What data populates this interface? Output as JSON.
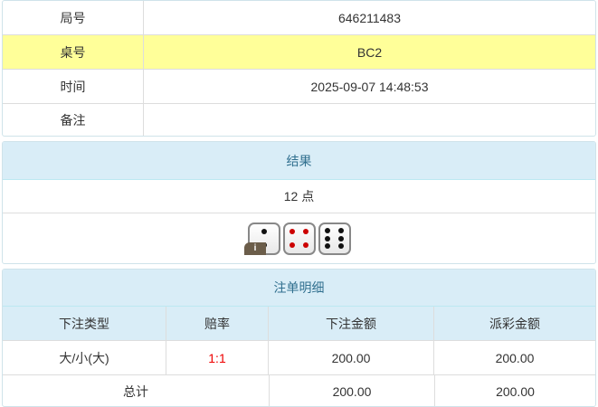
{
  "info": [
    {
      "label": "局号",
      "value": "646211483"
    },
    {
      "label": "桌号",
      "value": "BC2"
    },
    {
      "label": "时间",
      "value": "2025-09-07 14:48:53"
    },
    {
      "label": "备注",
      "value": ""
    }
  ],
  "result": {
    "title": "结果",
    "points": "12 点",
    "dice": [
      2,
      4,
      6
    ],
    "info_icon": "i"
  },
  "bets": {
    "title": "注单明细",
    "columns": [
      "下注类型",
      "赔率",
      "下注金额",
      "派彩金额"
    ],
    "rows": [
      {
        "type": "大/小(大)",
        "odds": "1:1",
        "amount": "200.00",
        "payout": "200.00"
      }
    ],
    "total": {
      "label": "总计",
      "amount": "200.00",
      "payout": "200.00"
    }
  },
  "colors": {
    "highlight": "#ffff99",
    "header_bg": "#d9edf7",
    "header_text": "#31708f",
    "odds": "#ee0000"
  }
}
